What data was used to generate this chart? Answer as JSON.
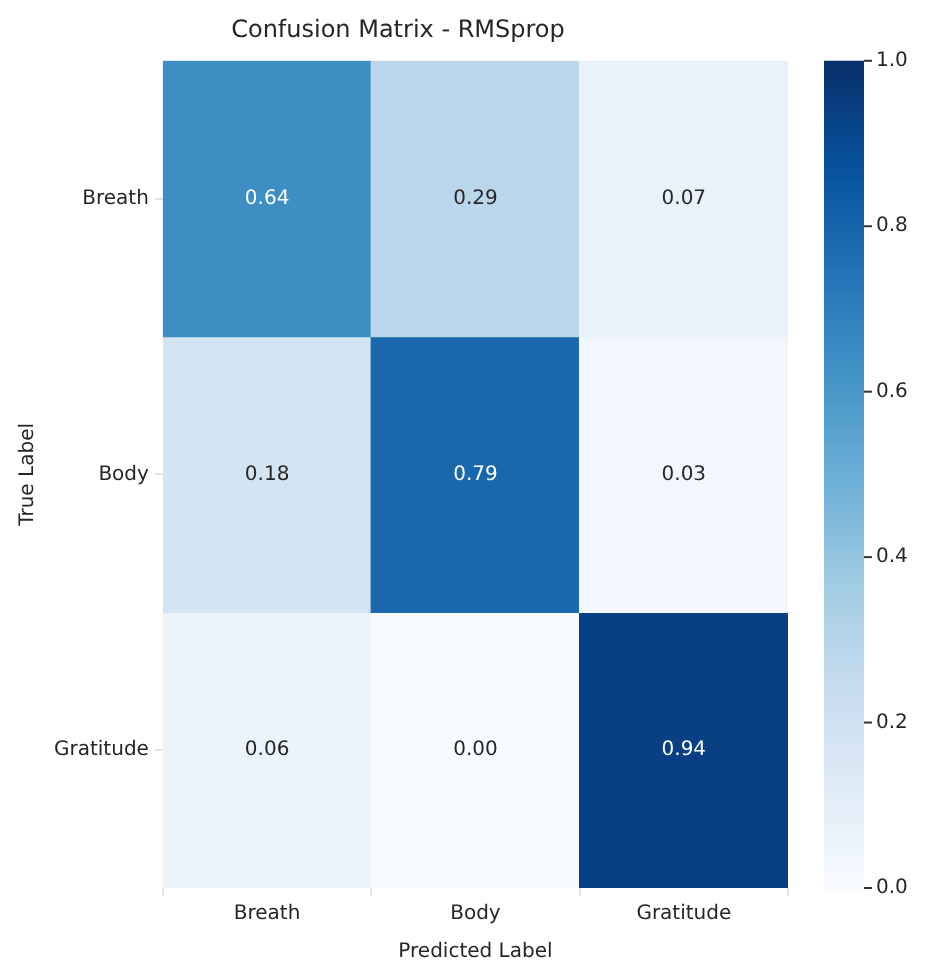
{
  "chart_data": {
    "type": "heatmap",
    "title": "Confusion Matrix - RMSprop",
    "xlabel": "Predicted Label",
    "ylabel": "True Label",
    "categories": [
      "Breath",
      "Body",
      "Gratitude"
    ],
    "y_categories": [
      "Breath",
      "Body",
      "Gratitude"
    ],
    "cells": [
      [
        0.64,
        0.29,
        0.07
      ],
      [
        0.18,
        0.79,
        0.03
      ],
      [
        0.06,
        0.0,
        0.94
      ]
    ],
    "cell_labels": [
      [
        "0.64",
        "0.29",
        "0.07"
      ],
      [
        "0.18",
        "0.79",
        "0.03"
      ],
      [
        "0.06",
        "0.00",
        "0.94"
      ]
    ],
    "clim": [
      0,
      1
    ],
    "cticks": [
      {
        "value": 0,
        "label": "0.0"
      },
      {
        "value": 0.2,
        "label": "0.2"
      },
      {
        "value": 0.4,
        "label": "0.4"
      },
      {
        "value": 0.6,
        "label": "0.6"
      },
      {
        "value": 0.8,
        "label": "0.8"
      },
      {
        "value": 1,
        "label": "1.0"
      }
    ]
  }
}
